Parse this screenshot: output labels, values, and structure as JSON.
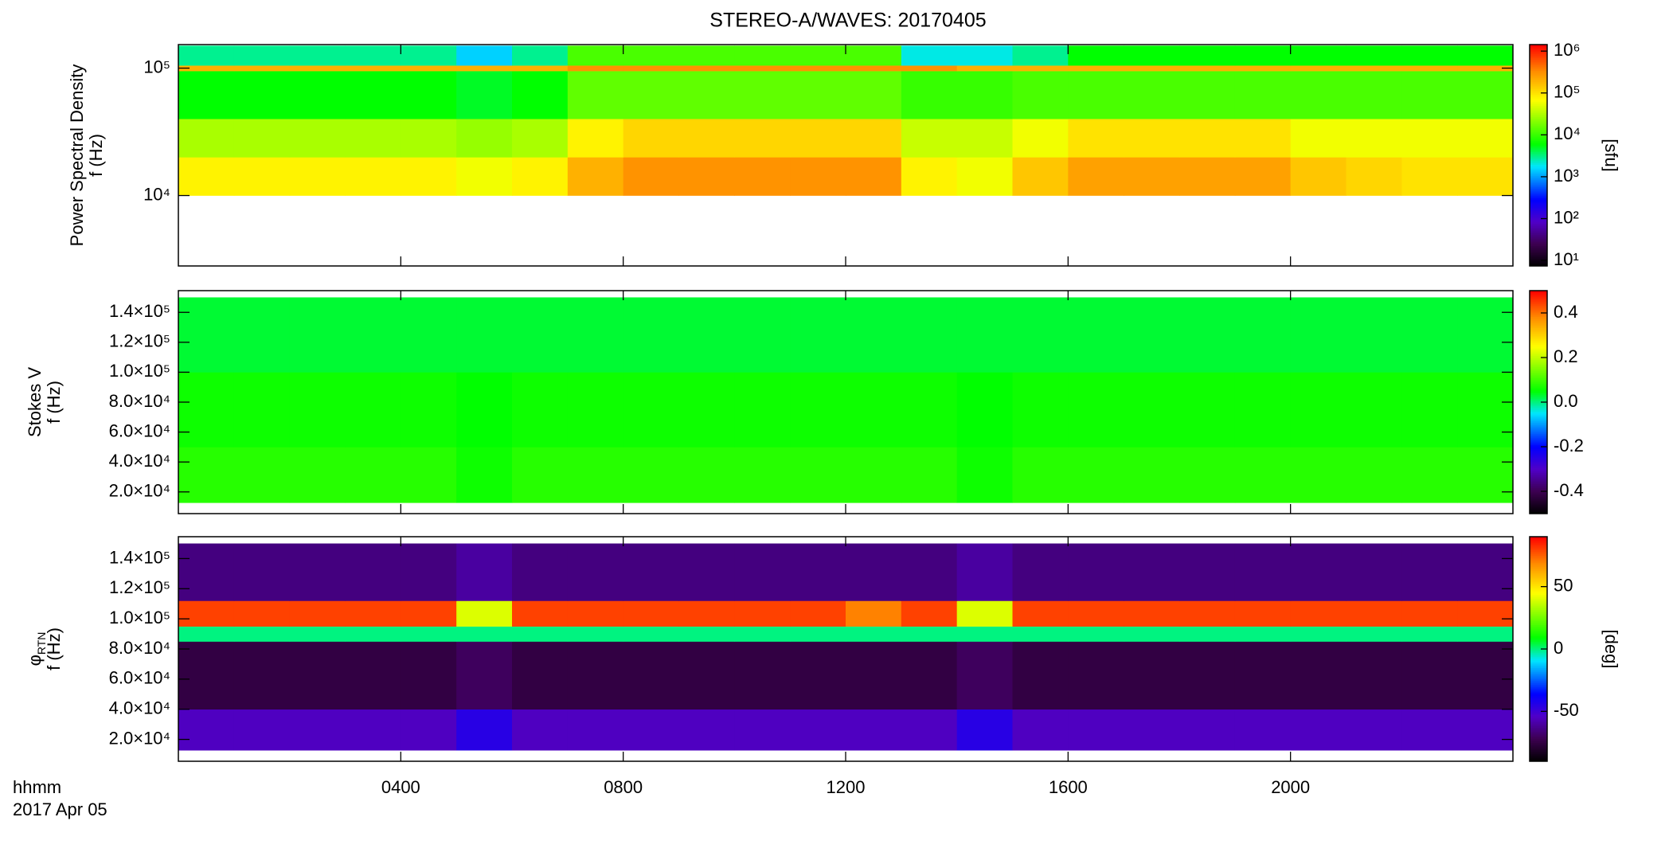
{
  "chart_data": [
    {
      "type": "heatmap",
      "title": "STEREO-A/WAVES: 20170405",
      "ylabel": [
        "Power Spectral Density",
        "f (Hz)"
      ],
      "yscale": "log",
      "ylim": [
        2800,
        153000
      ],
      "yticks": [
        {
          "value": 10000,
          "label": "10⁴"
        },
        {
          "value": 100000,
          "label": "10⁵"
        }
      ],
      "xlim": [
        0,
        24
      ],
      "x_edges": [
        0,
        1,
        2,
        3,
        4,
        5,
        6,
        7,
        8,
        9,
        10,
        11,
        12,
        13,
        14,
        15,
        16,
        17,
        18,
        19,
        20,
        21,
        22,
        23,
        24
      ],
      "y_edges": [
        10000,
        20000,
        40000,
        95000,
        105000,
        150000
      ],
      "z": [
        [
          80000,
          80000,
          80000,
          80000,
          80000,
          60000,
          80000,
          200000,
          300000,
          300000,
          300000,
          300000,
          300000,
          80000,
          60000,
          150000,
          250000,
          250000,
          250000,
          250000,
          150000,
          120000,
          100000,
          100000
        ],
        [
          30000,
          30000,
          30000,
          30000,
          30000,
          25000,
          30000,
          80000,
          120000,
          120000,
          120000,
          120000,
          120000,
          40000,
          40000,
          60000,
          100000,
          100000,
          100000,
          100000,
          60000,
          60000,
          60000,
          60000
        ],
        [
          6000,
          6000,
          6000,
          6000,
          6000,
          5000,
          6000,
          15000,
          15000,
          15000,
          15000,
          15000,
          15000,
          10000,
          10000,
          12000,
          12000,
          12000,
          12000,
          12000,
          12000,
          12000,
          12000,
          12000
        ],
        [
          200000,
          200000,
          200000,
          200000,
          200000,
          200000,
          200000,
          300000,
          300000,
          300000,
          300000,
          300000,
          300000,
          300000,
          200000,
          200000,
          200000,
          200000,
          200000,
          200000,
          200000,
          200000,
          200000,
          200000
        ],
        [
          3000,
          3000,
          3000,
          3000,
          3000,
          1500,
          3000,
          12000,
          12000,
          12000,
          12000,
          12000,
          12000,
          2000,
          2000,
          3000,
          6000,
          6000,
          6000,
          6000,
          6000,
          6000,
          6000,
          6000
        ]
      ],
      "colorbar": {
        "scale": "log",
        "lim": [
          7.4,
          1430000
        ],
        "label": "[sfu]",
        "ticks": [
          {
            "value": 10,
            "label": "10¹"
          },
          {
            "value": 100,
            "label": "10²"
          },
          {
            "value": 1000,
            "label": "10³"
          },
          {
            "value": 10000,
            "label": "10⁴"
          },
          {
            "value": 100000,
            "label": "10⁵"
          },
          {
            "value": 1000000,
            "label": "10⁶"
          }
        ]
      }
    },
    {
      "type": "heatmap",
      "ylabel": [
        "Stokes V",
        "f (Hz)"
      ],
      "yscale": "linear",
      "ylim": [
        5500,
        154500
      ],
      "yticks": [
        {
          "value": 20000,
          "label": "2.0×10⁴"
        },
        {
          "value": 40000,
          "label": "4.0×10⁴"
        },
        {
          "value": 60000,
          "label": "6.0×10⁴"
        },
        {
          "value": 80000,
          "label": "8.0×10⁴"
        },
        {
          "value": 100000,
          "label": "1.0×10⁵"
        },
        {
          "value": 120000,
          "label": "1.2×10⁵"
        },
        {
          "value": 140000,
          "label": "1.4×10⁵"
        }
      ],
      "xlim": [
        0,
        24
      ],
      "x_edges": [
        0,
        1,
        2,
        3,
        4,
        5,
        6,
        7,
        8,
        9,
        10,
        11,
        12,
        13,
        14,
        15,
        16,
        17,
        18,
        19,
        20,
        21,
        22,
        23,
        24
      ],
      "y_edges": [
        12800,
        50000,
        100000,
        150000
      ],
      "z": [
        [
          0.08,
          0.08,
          0.08,
          0.08,
          0.08,
          0.06,
          0.08,
          0.08,
          0.08,
          0.08,
          0.08,
          0.08,
          0.08,
          0.08,
          0.06,
          0.08,
          0.08,
          0.08,
          0.08,
          0.08,
          0.08,
          0.08,
          0.08,
          0.08
        ],
        [
          0.06,
          0.06,
          0.06,
          0.06,
          0.06,
          0.05,
          0.06,
          0.06,
          0.06,
          0.06,
          0.06,
          0.06,
          0.06,
          0.06,
          0.05,
          0.06,
          0.06,
          0.06,
          0.06,
          0.06,
          0.06,
          0.06,
          0.06,
          0.06
        ],
        [
          0.03,
          0.03,
          0.03,
          0.03,
          0.03,
          0.03,
          0.03,
          0.03,
          0.03,
          0.03,
          0.03,
          0.03,
          0.03,
          0.03,
          0.03,
          0.03,
          0.03,
          0.03,
          0.03,
          0.03,
          0.03,
          0.03,
          0.03,
          0.03
        ]
      ],
      "colorbar": {
        "scale": "linear",
        "lim": [
          -0.5,
          0.5
        ],
        "ticks": [
          -0.4,
          -0.2,
          {
            "value": 0,
            "label": "0.0"
          },
          0.2,
          0.4
        ]
      }
    },
    {
      "type": "heatmap",
      "ylabel": [
        {
          "text": "φ",
          "sub": "RTN"
        },
        "f (Hz)"
      ],
      "xlabel": [
        "hhmm",
        "2017 Apr 05"
      ],
      "yscale": "linear",
      "ylim": [
        5500,
        154500
      ],
      "yticks": [
        {
          "value": 20000,
          "label": "2.0×10⁴"
        },
        {
          "value": 40000,
          "label": "4.0×10⁴"
        },
        {
          "value": 60000,
          "label": "6.0×10⁴"
        },
        {
          "value": 80000,
          "label": "8.0×10⁴"
        },
        {
          "value": 100000,
          "label": "1.0×10⁵"
        },
        {
          "value": 120000,
          "label": "1.2×10⁵"
        },
        {
          "value": 140000,
          "label": "1.4×10⁵"
        }
      ],
      "xlim": [
        0,
        24
      ],
      "xticks": [
        {
          "value": 4,
          "label": "0400"
        },
        {
          "value": 8,
          "label": "0800"
        },
        {
          "value": 12,
          "label": "1200"
        },
        {
          "value": 16,
          "label": "1600"
        },
        {
          "value": 20,
          "label": "2000"
        }
      ],
      "x_edges": [
        0,
        1,
        2,
        3,
        4,
        5,
        6,
        7,
        8,
        9,
        10,
        11,
        12,
        13,
        14,
        15,
        16,
        17,
        18,
        19,
        20,
        21,
        22,
        23,
        24
      ],
      "y_edges": [
        12800,
        40000,
        85000,
        95000,
        112000,
        150000
      ],
      "z": [
        [
          -55,
          -55,
          -55,
          -55,
          -55,
          -45,
          -55,
          -55,
          -55,
          -55,
          -55,
          -55,
          -55,
          -55,
          -45,
          -55,
          -55,
          -55,
          -55,
          -55,
          -55,
          -55,
          -55,
          -55
        ],
        [
          -75,
          -75,
          -75,
          -75,
          -75,
          -70,
          -75,
          -75,
          -75,
          -75,
          -75,
          -75,
          -75,
          -75,
          -70,
          -75,
          -75,
          -75,
          -75,
          -75,
          -75,
          -75,
          -75,
          -75
        ],
        [
          0,
          0,
          0,
          0,
          0,
          0,
          0,
          0,
          0,
          0,
          0,
          0,
          0,
          0,
          0,
          0,
          0,
          0,
          0,
          0,
          0,
          0,
          0,
          0
        ],
        [
          80,
          80,
          80,
          80,
          80,
          40,
          80,
          80,
          80,
          80,
          80,
          80,
          70,
          80,
          40,
          80,
          80,
          80,
          80,
          80,
          80,
          80,
          80,
          80
        ],
        [
          -65,
          -65,
          -65,
          -65,
          -65,
          -60,
          -65,
          -65,
          -65,
          -65,
          -65,
          -65,
          -65,
          -65,
          -60,
          -65,
          -65,
          -65,
          -65,
          -65,
          -65,
          -65,
          -65,
          -65
        ]
      ],
      "colorbar": {
        "scale": "linear",
        "lim": [
          -90,
          90
        ],
        "label": "[deg]",
        "ticks": [
          -50,
          0,
          50
        ]
      }
    }
  ]
}
